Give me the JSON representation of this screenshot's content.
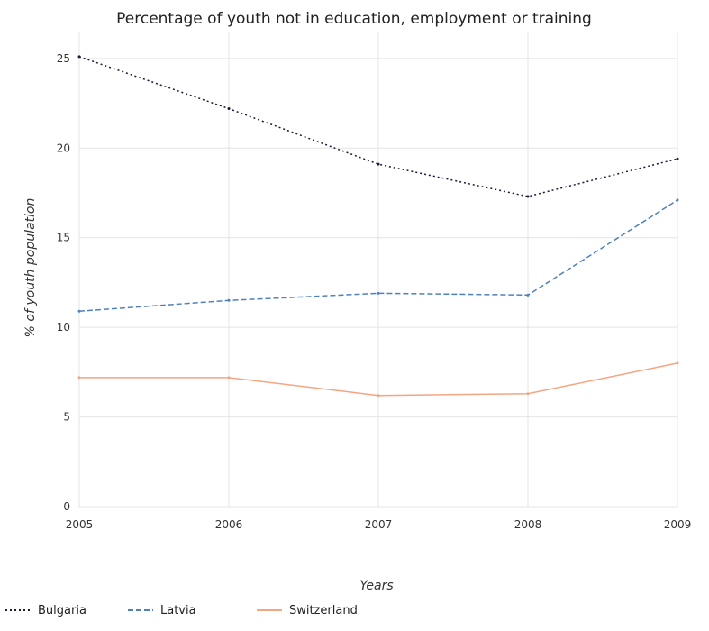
{
  "chart_data": {
    "type": "line",
    "title": "Percentage of youth not in education, employment or training",
    "xlabel": "Years",
    "ylabel": "% of youth population",
    "categories": [
      "2005",
      "2006",
      "2007",
      "2008",
      "2009"
    ],
    "ylim": [
      0,
      26.5
    ],
    "yticks": [
      "0",
      "5",
      "10",
      "15",
      "20",
      "25"
    ],
    "series": [
      {
        "name": "Bulgaria",
        "color": "#1b1b3a",
        "dash": "2,3",
        "values": [
          25.1,
          22.2,
          19.1,
          17.3,
          19.4
        ]
      },
      {
        "name": "Latvia",
        "color": "#4f81bd",
        "dash": "6,3",
        "values": [
          10.9,
          11.5,
          11.9,
          11.8,
          17.1
        ]
      },
      {
        "name": "Switzerland",
        "color": "#f4a582",
        "dash": "",
        "values": [
          7.2,
          7.2,
          6.2,
          6.3,
          8.0
        ]
      }
    ],
    "legend_position": "bottom"
  }
}
